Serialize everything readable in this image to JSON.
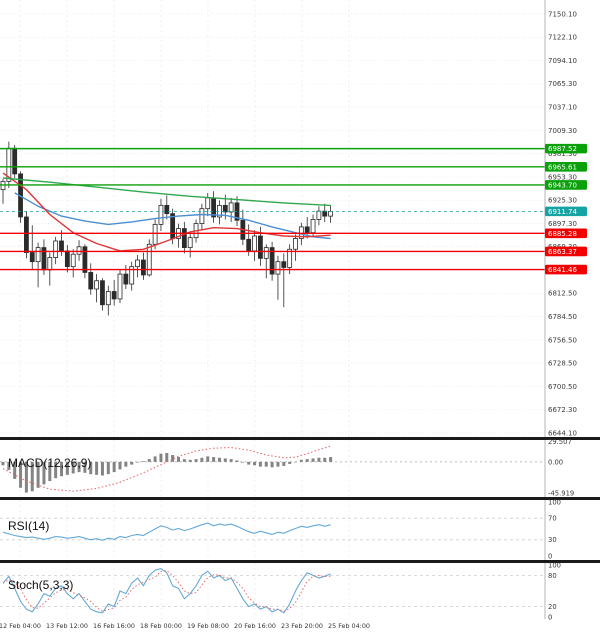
{
  "panels": {
    "macd_title": "MACD(12,26,9)",
    "rsi_title": "RSI(14)",
    "stoch_title": "Stoch(5,3,3)"
  },
  "colors": {
    "up_candle": "#fdfdfd",
    "down_candle": "#2b2b2b",
    "candle_border": "#2b2b2b",
    "resistance": "#0aa10a",
    "support": "#f20000",
    "current": "#16a3a3",
    "ma_fast": "#4b8fd4",
    "ma_mid": "#e23434",
    "ma_slow": "#2fa84f",
    "macd_signal": "#e36c6c",
    "macd_hist": "#6f6f6f",
    "rsi_line": "#64a8d8",
    "stoch_k": "#64a8d8",
    "stoch_d": "#e36c6c",
    "grid": "#e8e8e8",
    "tick_text": "#3a3a3a"
  },
  "axis": {
    "price_ticks": [
      "7150.10",
      "7122.10",
      "7094.10",
      "7065.30",
      "7037.10",
      "7009.30",
      "6981.30",
      "6953.30",
      "6925.30",
      "6897.30",
      "6869.30",
      "6841.30",
      "6812.50",
      "6784.50",
      "6756.50",
      "6728.50",
      "6700.50",
      "6672.30",
      "6644.10"
    ],
    "time_labels": [
      "12 Feb 04:00",
      "13 Feb 12:00",
      "16 Feb 16:00",
      "18 Feb 00:00",
      "19 Feb 08:00",
      "20 Feb 16:00",
      "23 Feb 20:00",
      "25 Feb 04:00"
    ]
  },
  "chart_data": [
    {
      "type": "candlestick",
      "title": "",
      "ylim": [
        6639,
        7167
      ],
      "current_price": 6911.74,
      "current_price_label": "6911.74",
      "levels": [
        {
          "label": "6987.52",
          "price": 6987.52,
          "kind": "resistance"
        },
        {
          "label": "6965.61",
          "price": 6965.61,
          "kind": "resistance"
        },
        {
          "label": "6943.70",
          "price": 6943.7,
          "kind": "resistance"
        },
        {
          "label": "6885.28",
          "price": 6885.28,
          "kind": "support"
        },
        {
          "label": "6863.37",
          "price": 6863.37,
          "kind": "support"
        },
        {
          "label": "6841.46",
          "price": 6841.46,
          "kind": "support"
        }
      ],
      "candles": [
        [
          6938,
          6951,
          6921,
          6948
        ],
        [
          6948,
          6996,
          6940,
          6988
        ],
        [
          6988,
          6992,
          6952,
          6957
        ],
        [
          6957,
          6960,
          6898,
          6905
        ],
        [
          6905,
          6912,
          6855,
          6862
        ],
        [
          6862,
          6895,
          6842,
          6851
        ],
        [
          6851,
          6874,
          6820,
          6868
        ],
        [
          6868,
          6878,
          6835,
          6841
        ],
        [
          6841,
          6862,
          6822,
          6856
        ],
        [
          6856,
          6881,
          6848,
          6876
        ],
        [
          6876,
          6889,
          6858,
          6864
        ],
        [
          6864,
          6871,
          6838,
          6845
        ],
        [
          6845,
          6866,
          6832,
          6860
        ],
        [
          6860,
          6877,
          6852,
          6869
        ],
        [
          6869,
          6872,
          6831,
          6838
        ],
        [
          6838,
          6849,
          6811,
          6818
        ],
        [
          6818,
          6836,
          6802,
          6828
        ],
        [
          6828,
          6831,
          6792,
          6799
        ],
        [
          6799,
          6822,
          6786,
          6815
        ],
        [
          6815,
          6829,
          6798,
          6806
        ],
        [
          6806,
          6841,
          6801,
          6836
        ],
        [
          6836,
          6847,
          6818,
          6824
        ],
        [
          6824,
          6851,
          6816,
          6845
        ],
        [
          6845,
          6859,
          6832,
          6853
        ],
        [
          6853,
          6862,
          6829,
          6835
        ],
        [
          6835,
          6878,
          6833,
          6872
        ],
        [
          6872,
          6902,
          6866,
          6896
        ],
        [
          6896,
          6927,
          6888,
          6919
        ],
        [
          6919,
          6931,
          6902,
          6909
        ],
        [
          6909,
          6915,
          6872,
          6879
        ],
        [
          6879,
          6897,
          6868,
          6891
        ],
        [
          6891,
          6899,
          6861,
          6868
        ],
        [
          6868,
          6885,
          6856,
          6880
        ],
        [
          6880,
          6902,
          6874,
          6897
        ],
        [
          6897,
          6921,
          6889,
          6915
        ],
        [
          6915,
          6934,
          6906,
          6928
        ],
        [
          6928,
          6936,
          6898,
          6905
        ],
        [
          6905,
          6925,
          6896,
          6919
        ],
        [
          6919,
          6932,
          6902,
          6911
        ],
        [
          6911,
          6928,
          6899,
          6922
        ],
        [
          6922,
          6930,
          6894,
          6901
        ],
        [
          6901,
          6914,
          6871,
          6878
        ],
        [
          6878,
          6896,
          6858,
          6864
        ],
        [
          6864,
          6889,
          6852,
          6882
        ],
        [
          6882,
          6893,
          6846,
          6855
        ],
        [
          6855,
          6872,
          6831,
          6868
        ],
        [
          6868,
          6875,
          6828,
          6836
        ],
        [
          6836,
          6858,
          6805,
          6851
        ],
        [
          6851,
          6861,
          6796,
          6844
        ],
        [
          6844,
          6872,
          6836,
          6866
        ],
        [
          6866,
          6884,
          6852,
          6879
        ],
        [
          6879,
          6898,
          6871,
          6893
        ],
        [
          6893,
          6905,
          6879,
          6886
        ],
        [
          6886,
          6908,
          6881,
          6902
        ],
        [
          6902,
          6918,
          6895,
          6912
        ],
        [
          6912,
          6921,
          6899,
          6906
        ],
        [
          6906,
          6919,
          6898,
          6911.74
        ]
      ],
      "ma_series": [
        {
          "name": "ma-fast",
          "points": [
            [
              2,
              6934
            ],
            [
              6,
              6918
            ],
            [
              10,
              6906
            ],
            [
              14,
              6900
            ],
            [
              18,
              6896
            ],
            [
              22,
              6899
            ],
            [
              26,
              6903
            ],
            [
              30,
              6906
            ],
            [
              34,
              6908
            ],
            [
              38,
              6907
            ],
            [
              42,
              6901
            ],
            [
              46,
              6893
            ],
            [
              50,
              6886
            ],
            [
              53,
              6881
            ],
            [
              56,
              6879
            ]
          ]
        },
        {
          "name": "ma-mid",
          "points": [
            [
              0,
              6958
            ],
            [
              4,
              6938
            ],
            [
              8,
              6908
            ],
            [
              12,
              6886
            ],
            [
              16,
              6873
            ],
            [
              20,
              6864
            ],
            [
              24,
              6866
            ],
            [
              28,
              6876
            ],
            [
              32,
              6887
            ],
            [
              36,
              6892
            ],
            [
              40,
              6891
            ],
            [
              44,
              6886
            ],
            [
              48,
              6882
            ],
            [
              52,
              6881
            ],
            [
              56,
              6883
            ]
          ]
        },
        {
          "name": "ma-slow",
          "points": [
            [
              0,
              6952
            ],
            [
              8,
              6947
            ],
            [
              16,
              6941
            ],
            [
              24,
              6935
            ],
            [
              32,
              6930
            ],
            [
              40,
              6926
            ],
            [
              48,
              6922
            ],
            [
              56,
              6919
            ]
          ]
        }
      ]
    },
    {
      "type": "macd",
      "params": "12,26,9",
      "ticks": [
        {
          "label": "29.507",
          "v": 29.507
        },
        {
          "label": "0.00",
          "v": 0
        },
        {
          "label": "-45.919",
          "v": -45.919
        }
      ],
      "ylim": [
        -50,
        32
      ],
      "histogram": [
        -5,
        -12,
        -25,
        -38,
        -45,
        -43,
        -38,
        -33,
        -28,
        -24,
        -21,
        -19,
        -17,
        -15,
        -16,
        -18,
        -19,
        -20,
        -18,
        -15,
        -11,
        -7,
        -4,
        -1,
        1,
        4,
        8,
        12,
        13,
        10,
        7,
        4,
        3,
        4,
        6,
        8,
        7,
        6,
        5,
        4,
        2,
        -1,
        -4,
        -5,
        -7,
        -7,
        -8,
        -7,
        -6,
        -3,
        0,
        3,
        4,
        5,
        6,
        6,
        7
      ],
      "signal_points": [
        [
          0,
          -10
        ],
        [
          4,
          -28
        ],
        [
          8,
          -40
        ],
        [
          12,
          -43
        ],
        [
          16,
          -39
        ],
        [
          20,
          -30
        ],
        [
          24,
          -16
        ],
        [
          27,
          -4
        ],
        [
          30,
          8
        ],
        [
          33,
          16
        ],
        [
          36,
          20
        ],
        [
          39,
          21
        ],
        [
          42,
          17
        ],
        [
          45,
          10
        ],
        [
          48,
          6
        ],
        [
          50,
          7
        ],
        [
          52,
          12
        ],
        [
          54,
          18
        ],
        [
          56,
          23
        ]
      ]
    },
    {
      "type": "rsi",
      "param": "14",
      "ticks": [
        {
          "label": "100",
          "v": 100
        },
        {
          "label": "70",
          "v": 70
        },
        {
          "label": "30",
          "v": 30
        },
        {
          "label": "0",
          "v": 0
        }
      ],
      "ref_lines": [
        70,
        30
      ],
      "ylim": [
        0,
        100
      ],
      "values": [
        44,
        41,
        38,
        36,
        34,
        35,
        33,
        31,
        33,
        36,
        35,
        33,
        34,
        36,
        33,
        30,
        32,
        29,
        33,
        31,
        36,
        34,
        38,
        40,
        38,
        44,
        50,
        56,
        53,
        48,
        51,
        47,
        50,
        54,
        58,
        61,
        56,
        59,
        57,
        59,
        55,
        50,
        45,
        42,
        46,
        43,
        40,
        44,
        42,
        47,
        51,
        55,
        53,
        56,
        58,
        55,
        58
      ]
    },
    {
      "type": "stoch",
      "params": "5,3,3",
      "ticks": [
        {
          "label": "100",
          "v": 100
        },
        {
          "label": "80",
          "v": 80
        },
        {
          "label": "20",
          "v": 20
        },
        {
          "label": "0",
          "v": 0
        }
      ],
      "ref_lines": [
        80,
        20
      ],
      "ylim": [
        0,
        100
      ],
      "k_values": [
        65,
        78,
        55,
        30,
        15,
        10,
        25,
        45,
        40,
        55,
        60,
        45,
        35,
        45,
        30,
        15,
        10,
        8,
        25,
        20,
        50,
        45,
        65,
        75,
        60,
        80,
        90,
        93,
        85,
        60,
        55,
        35,
        45,
        60,
        80,
        88,
        75,
        80,
        70,
        75,
        55,
        35,
        20,
        25,
        15,
        20,
        10,
        15,
        8,
        25,
        50,
        70,
        85,
        80,
        75,
        78,
        83
      ]
    }
  ]
}
